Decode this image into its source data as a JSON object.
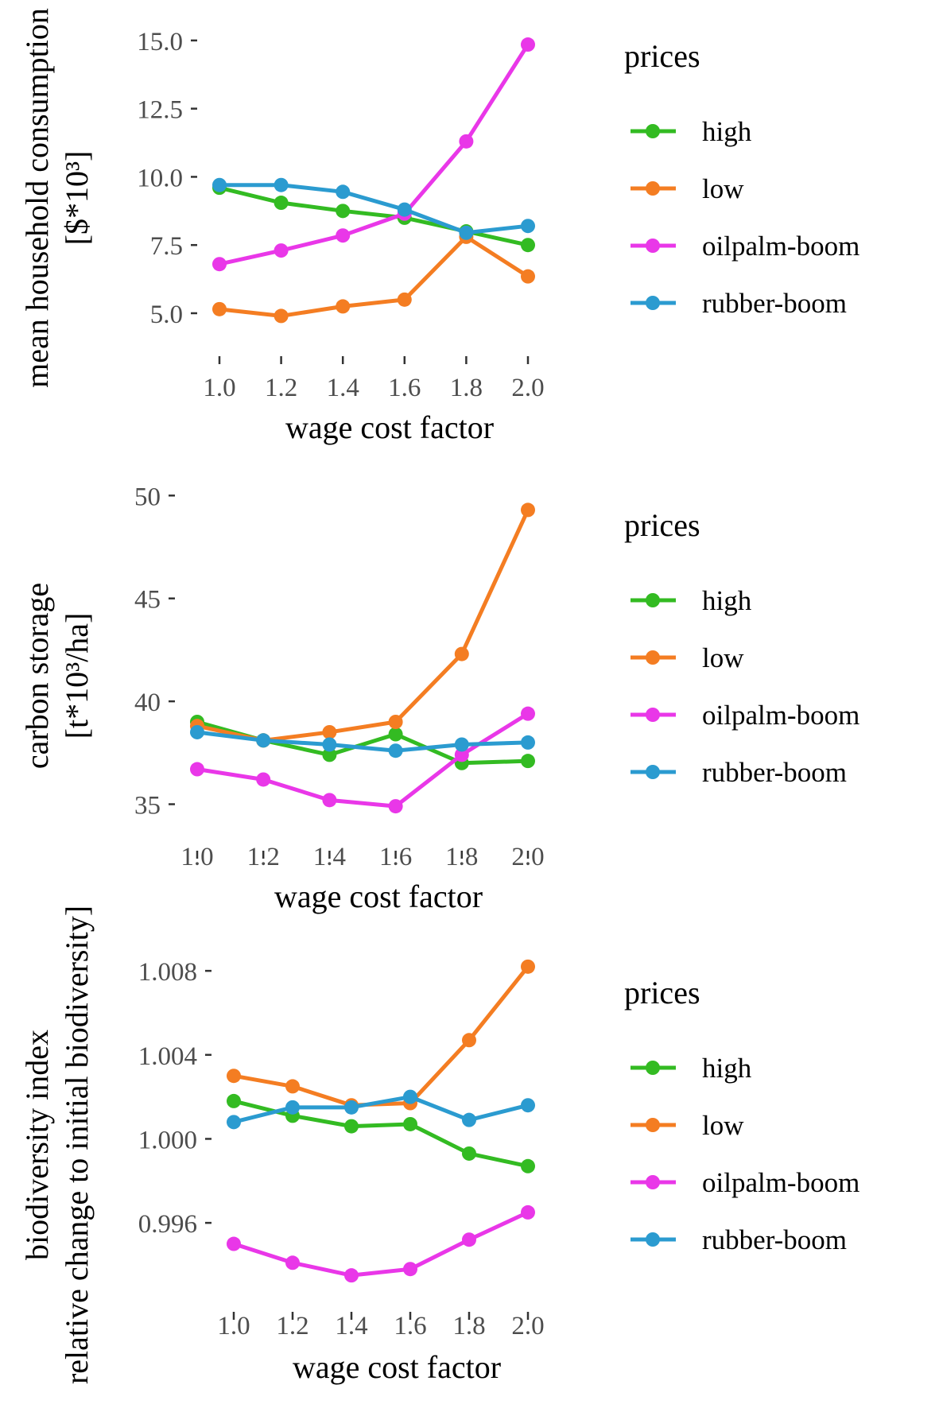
{
  "chart_data": [
    {
      "type": "line",
      "xlabel": "wage cost factor",
      "ylabel": [
        "mean household consumption",
        "[$*10³]"
      ],
      "x": [
        1.0,
        1.2,
        1.4,
        1.6,
        1.8,
        2.0
      ],
      "x_ticks": [
        "1.0",
        "1.2",
        "1.4",
        "1.6",
        "1.8",
        "2.0"
      ],
      "y_ticks": [
        "5.0",
        "7.5",
        "10.0",
        "12.5",
        "15.0"
      ],
      "ylim": [
        4.3,
        15.9
      ],
      "legend_title": "prices",
      "legend_position": "right",
      "grid": false,
      "series": [
        {
          "name": "high",
          "color": "#33bb22",
          "values": [
            9.6,
            9.05,
            8.75,
            8.5,
            8.0,
            7.5
          ]
        },
        {
          "name": "low",
          "color": "#f47d22",
          "values": [
            5.15,
            4.9,
            5.25,
            5.5,
            7.8,
            6.35
          ]
        },
        {
          "name": "oilpalm-boom",
          "color": "#e937e8",
          "values": [
            6.8,
            7.3,
            7.85,
            8.65,
            11.3,
            14.85
          ]
        },
        {
          "name": "rubber-boom",
          "color": "#2b9bd0",
          "values": [
            9.7,
            9.7,
            9.45,
            8.8,
            7.95,
            8.2
          ]
        }
      ]
    },
    {
      "type": "line",
      "xlabel": "wage cost factor",
      "ylabel": [
        "carbon storage",
        "[t*10³/ha]"
      ],
      "x": [
        1.0,
        1.2,
        1.4,
        1.6,
        1.8,
        2.0
      ],
      "x_ticks": [
        "1.0",
        "1.2",
        "1.4",
        "1.6",
        "1.8",
        "2.0"
      ],
      "y_ticks": [
        "35",
        "40",
        "45",
        "50"
      ],
      "ylim": [
        33.9,
        50.9
      ],
      "legend_title": "prices",
      "legend_position": "right",
      "grid": false,
      "series": [
        {
          "name": "high",
          "color": "#33bb22",
          "values": [
            39.0,
            38.1,
            37.4,
            38.4,
            37.0,
            37.1
          ]
        },
        {
          "name": "low",
          "color": "#f47d22",
          "values": [
            38.8,
            38.1,
            38.5,
            39.0,
            42.3,
            49.3
          ]
        },
        {
          "name": "oilpalm-boom",
          "color": "#e937e8",
          "values": [
            36.7,
            36.2,
            35.2,
            34.9,
            37.4,
            39.4
          ]
        },
        {
          "name": "rubber-boom",
          "color": "#2b9bd0",
          "values": [
            38.5,
            38.1,
            37.9,
            37.6,
            37.9,
            38.0
          ]
        }
      ]
    },
    {
      "type": "line",
      "xlabel": "wage cost factor",
      "ylabel": [
        "biodiversity index",
        "relative change to initial biodiversity]"
      ],
      "x": [
        1.0,
        1.2,
        1.4,
        1.6,
        1.8,
        2.0
      ],
      "x_ticks": [
        "1.0",
        "1.2",
        "1.4",
        "1.6",
        "1.8",
        "2.0"
      ],
      "y_ticks": [
        "0.996",
        "1.000",
        "1.004",
        "1.008"
      ],
      "ylim": [
        0.9929,
        1.0088
      ],
      "legend_title": "prices",
      "legend_position": "right",
      "grid": false,
      "series": [
        {
          "name": "high",
          "color": "#33bb22",
          "values": [
            1.0018,
            1.0011,
            1.0006,
            1.0007,
            0.9993,
            0.9987
          ]
        },
        {
          "name": "low",
          "color": "#f47d22",
          "values": [
            1.003,
            1.0025,
            1.0016,
            1.0017,
            1.0047,
            1.0082
          ]
        },
        {
          "name": "oilpalm-boom",
          "color": "#e937e8",
          "values": [
            0.995,
            0.9941,
            0.9935,
            0.9938,
            0.9952,
            0.9965
          ]
        },
        {
          "name": "rubber-boom",
          "color": "#2b9bd0",
          "values": [
            1.0008,
            1.0015,
            1.0015,
            1.002,
            1.0009,
            1.0016
          ]
        }
      ]
    }
  ]
}
